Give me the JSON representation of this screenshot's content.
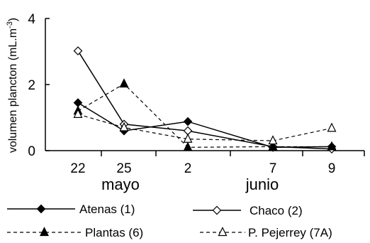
{
  "chart_data": {
    "type": "line",
    "ylabel": "volumen plancton (mL.m",
    "ylabel_sup": "-3",
    "ylabel_close": ")",
    "ylim": [
      0,
      4
    ],
    "yticks": [
      "0",
      "2",
      "4"
    ],
    "x": [
      "22",
      "25",
      "2",
      "7",
      "9"
    ],
    "months": [
      {
        "label": "mayo"
      },
      {
        "label": "junio"
      }
    ],
    "grid": false,
    "legend_position": "bottom",
    "series": [
      {
        "name": "Atenas (1)",
        "values": [
          1.45,
          0.6,
          0.88,
          0.1,
          0.12
        ],
        "marker": "filled-diamond",
        "dash": "solid"
      },
      {
        "name": "Chaco (2)",
        "values": [
          3.02,
          0.8,
          0.6,
          0.12,
          0.05
        ],
        "marker": "open-diamond",
        "dash": "solid"
      },
      {
        "name": "Plantas (6)",
        "values": [
          1.2,
          2.02,
          0.1,
          0.12,
          0.12
        ],
        "marker": "filled-triangle",
        "dash": "dashed"
      },
      {
        "name": "P. Pejerrey (7A)",
        "values": [
          1.1,
          0.7,
          0.35,
          0.3,
          0.68
        ],
        "marker": "open-triangle",
        "dash": "dashed"
      }
    ]
  }
}
